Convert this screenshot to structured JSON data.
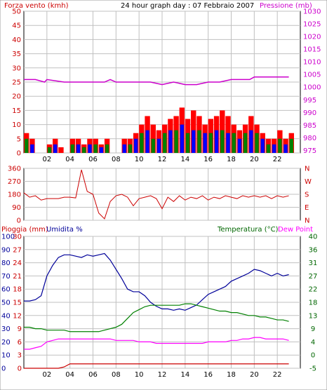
{
  "header": {
    "left_title": "Forza vento (kmh)",
    "center_title": "24 hour graph day : 07 Febbraio 2007",
    "right_title": "Pressione (mb)"
  },
  "panel3_labels": {
    "left1": "Pioggia (mm)",
    "left2": "Umidita %",
    "right1": "Temperatura (°C)",
    "right2": "Dew Point"
  },
  "colors": {
    "wind_speed": "#ff0000",
    "wind_gust_blue": "#0000ff",
    "wind_green": "#008000",
    "pressure": "#cc00cc",
    "direction": "#cc0000",
    "humidity": "#000099",
    "temperature": "#008000",
    "dewpoint": "#ff00ff",
    "rain": "#cc0000",
    "grid": "#c0c0c0",
    "left_axis_text": "#cc0000",
    "right_axis_text_pressure": "#cc00cc",
    "temp_axis_text": "#006600"
  },
  "chart_data": [
    {
      "type": "bar",
      "name": "wind",
      "x_ticks": [
        "02",
        "04",
        "06",
        "08",
        "10",
        "12",
        "14",
        "16",
        "18",
        "20",
        "22"
      ],
      "y_left_ticks": [
        "0",
        "5",
        "10",
        "15",
        "20",
        "25",
        "30",
        "35",
        "40",
        "45",
        "50"
      ],
      "y_right_ticks": [
        "975",
        "980",
        "985",
        "990",
        "995",
        "1000",
        "1005",
        "1010",
        "1015",
        "1020",
        "1025",
        "1030"
      ],
      "ylim_left": [
        0,
        50
      ],
      "ylim_right": [
        974,
        1030
      ],
      "wind_x": [
        0,
        0.5,
        1,
        1.5,
        2,
        2.5,
        3,
        3.5,
        4,
        4.5,
        5,
        5.5,
        6,
        6.5,
        7,
        7.5,
        8,
        8.5,
        9,
        9.5,
        10,
        10.5,
        11,
        11.5,
        12,
        12.5,
        13,
        13.5,
        14,
        14.5,
        15,
        15.5,
        16,
        16.5,
        17,
        17.5,
        18,
        18.5,
        19,
        19.5,
        20,
        20.5,
        21,
        21.5,
        22,
        22.5,
        23
      ],
      "wind_speed": [
        7,
        5,
        0,
        0,
        3,
        5,
        2,
        0,
        5,
        5,
        3,
        5,
        5,
        3,
        5,
        0,
        0,
        5,
        5,
        7,
        10,
        13,
        10,
        8,
        10,
        12,
        13,
        16,
        12,
        15,
        13,
        10,
        12,
        13,
        15,
        13,
        10,
        8,
        10,
        13,
        10,
        7,
        5,
        5,
        8,
        5,
        7
      ],
      "wind_gust": [
        5,
        3,
        0,
        0,
        2,
        3,
        0,
        0,
        3,
        3,
        2,
        3,
        3,
        2,
        3,
        0,
        0,
        3,
        3,
        5,
        7,
        8,
        5,
        5,
        7,
        8,
        8,
        10,
        7,
        8,
        8,
        7,
        7,
        8,
        8,
        7,
        7,
        5,
        7,
        8,
        7,
        5,
        3,
        3,
        5,
        3,
        5
      ],
      "pressure_x": [
        0,
        1,
        1.8,
        2,
        3.5,
        4,
        5,
        6,
        7,
        7.5,
        8,
        9,
        10,
        11,
        12,
        13,
        14,
        15,
        16,
        17,
        18,
        19,
        19.6,
        20,
        21,
        22,
        23
      ],
      "pressure": [
        1003,
        1003,
        1002,
        1003,
        1002,
        1002,
        1002,
        1002,
        1002,
        1003,
        1002,
        1002,
        1002,
        1002,
        1001,
        1002,
        1001,
        1001,
        1002,
        1002,
        1003,
        1003,
        1003,
        1004,
        1004,
        1004,
        1004
      ]
    },
    {
      "type": "line",
      "name": "wind-direction",
      "x_ticks": [
        "02",
        "04",
        "06",
        "08",
        "10",
        "12",
        "14",
        "16",
        "18",
        "20",
        "22"
      ],
      "y_left_ticks": [
        "0",
        "90",
        "180",
        "270",
        "360"
      ],
      "y_right_ticks": [
        "N",
        "E",
        "S",
        "W",
        "N"
      ],
      "ylim": [
        0,
        360
      ],
      "x": [
        0,
        0.5,
        1,
        1.5,
        2,
        2.5,
        3,
        3.5,
        4,
        4.5,
        5,
        5.5,
        6,
        6.5,
        7,
        7.5,
        8,
        8.5,
        9,
        9.5,
        10,
        10.5,
        11,
        11.5,
        12,
        12.5,
        13,
        13.5,
        14,
        14.5,
        15,
        15.5,
        16,
        16.5,
        17,
        17.5,
        18,
        18.5,
        19,
        19.5,
        20,
        20.5,
        21,
        21.5,
        22,
        22.5,
        23
      ],
      "direction": [
        190,
        160,
        170,
        140,
        150,
        150,
        150,
        160,
        160,
        155,
        350,
        200,
        180,
        50,
        10,
        130,
        170,
        180,
        160,
        100,
        150,
        160,
        170,
        150,
        80,
        160,
        130,
        170,
        140,
        160,
        150,
        170,
        140,
        160,
        150,
        170,
        160,
        150,
        170,
        160,
        170,
        160,
        170,
        150,
        170,
        160,
        170
      ]
    },
    {
      "type": "line",
      "name": "temperature-humidity-rain",
      "x_ticks": [
        "02",
        "04",
        "06",
        "08",
        "10",
        "12",
        "14",
        "16",
        "18",
        "20",
        "22"
      ],
      "y_left_humidity_ticks": [
        "0",
        "10",
        "20",
        "30",
        "40",
        "50",
        "60",
        "70",
        "80",
        "90",
        "100"
      ],
      "y_left_rain_ticks": [
        "0",
        "3",
        "6",
        "9",
        "12",
        "15",
        "18",
        "21",
        "24",
        "27",
        "30"
      ],
      "y_right_ticks": [
        "-5",
        "0",
        "4",
        "9",
        "13",
        "18",
        "22",
        "27",
        "31",
        "36",
        "40"
      ],
      "ylim_humidity": [
        0,
        100
      ],
      "ylim_temperature": [
        -5,
        40
      ],
      "x": [
        0,
        0.5,
        1,
        1.5,
        2,
        2.5,
        3,
        3.5,
        4,
        4.5,
        5,
        5.5,
        6,
        6.5,
        7,
        7.5,
        8,
        8.5,
        9,
        9.5,
        10,
        10.5,
        11,
        11.5,
        12,
        12.5,
        13,
        13.5,
        14,
        14.5,
        15,
        15.5,
        16,
        16.5,
        17,
        17.5,
        18,
        18.5,
        19,
        19.5,
        20,
        20.5,
        21,
        21.5,
        22,
        22.5,
        23
      ],
      "humidity": [
        51,
        51,
        52,
        55,
        70,
        78,
        84,
        86,
        86,
        85,
        84,
        86,
        85,
        86,
        87,
        82,
        75,
        68,
        60,
        58,
        58,
        55,
        50,
        47,
        45,
        45,
        44,
        45,
        44,
        46,
        48,
        52,
        56,
        58,
        60,
        62,
        66,
        68,
        70,
        72,
        75,
        74,
        72,
        70,
        72,
        70,
        71
      ],
      "temperature": [
        9,
        9,
        8.5,
        8.5,
        8,
        8,
        8,
        8,
        7.5,
        7.5,
        7.5,
        7.5,
        7.5,
        7.5,
        8,
        8.5,
        9,
        10,
        12,
        14,
        15,
        16,
        16.5,
        16.5,
        16.5,
        16.5,
        16.5,
        16.5,
        17,
        17,
        16.5,
        16,
        15.5,
        15,
        14.5,
        14.5,
        14,
        14,
        13.5,
        13,
        13,
        12.5,
        12.5,
        12,
        11.5,
        11.5,
        11
      ],
      "dewpoint": [
        1.5,
        1.5,
        2,
        2.5,
        4,
        4.5,
        5,
        5,
        5,
        5,
        5,
        5,
        5,
        5,
        5,
        5,
        4.5,
        4.5,
        4.5,
        4.5,
        4,
        4,
        4,
        3.5,
        3.5,
        3.5,
        3.5,
        3.5,
        3.5,
        3.5,
        3.5,
        3.5,
        4,
        4,
        4,
        4,
        4.5,
        4.5,
        5,
        5,
        5.5,
        5.5,
        5,
        5,
        5,
        5,
        4.5
      ],
      "rain": [
        0,
        0,
        0,
        0,
        0,
        0,
        0,
        0.3,
        1,
        1,
        1,
        1,
        1,
        1,
        1,
        1,
        1,
        1,
        1,
        1,
        1,
        1,
        1,
        1,
        1,
        1,
        1,
        1,
        1,
        1,
        1,
        1,
        1,
        1,
        1,
        1,
        1,
        1,
        1,
        1,
        1,
        1,
        1,
        1,
        1,
        1,
        1
      ]
    }
  ]
}
